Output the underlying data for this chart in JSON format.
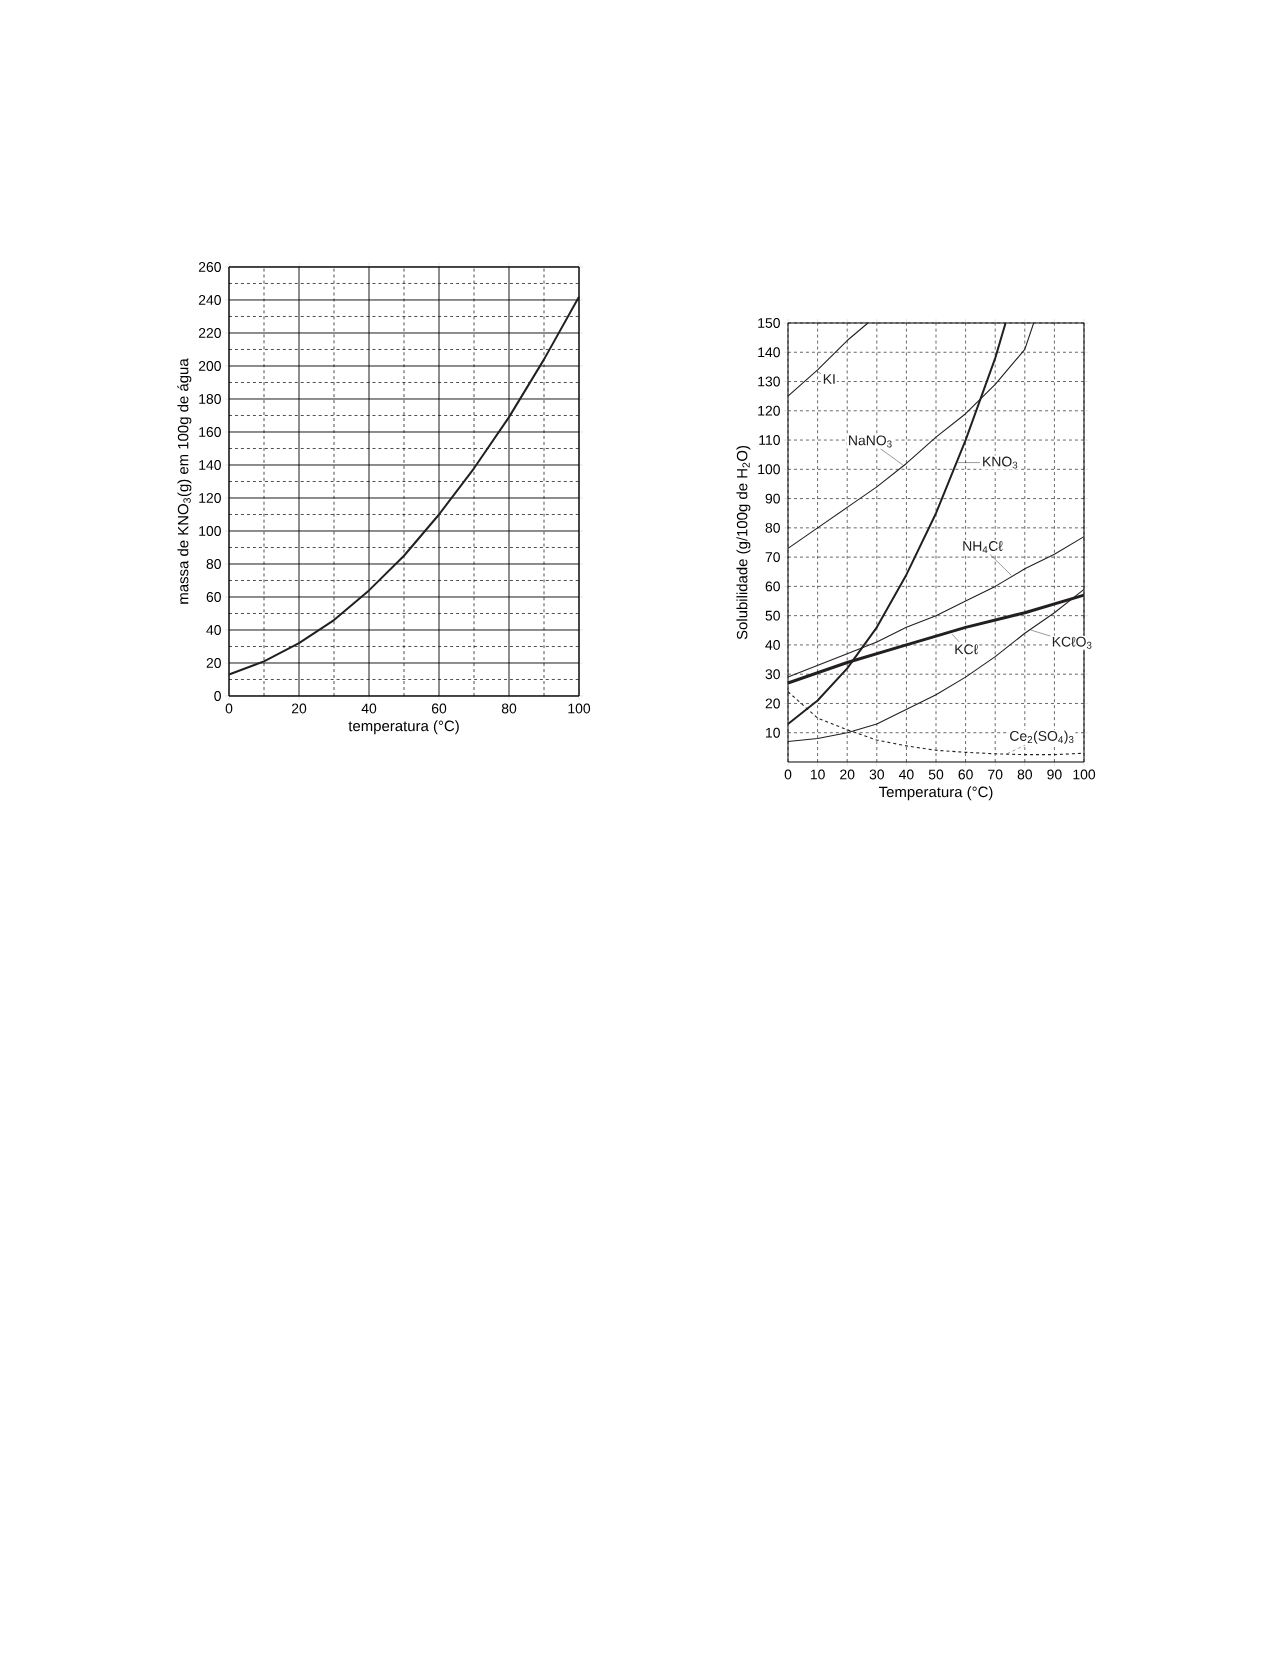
{
  "chart_data": [
    {
      "type": "line",
      "xlabel": "temperatura (°C)",
      "ylabel": "massa de KNO$_{3}$(g) em 100g de água",
      "x": [
        0,
        10,
        20,
        30,
        40,
        50,
        60,
        70,
        80,
        90,
        100
      ],
      "series": [
        {
          "color": "#231f20",
          "values": [
            13,
            21,
            32,
            46,
            64,
            85,
            110,
            138,
            169,
            204,
            242
          ]
        }
      ],
      "xlim": [
        0,
        100
      ],
      "ylim": [
        0,
        260
      ],
      "xticks": [
        0,
        20,
        40,
        60,
        80,
        100
      ],
      "yticks": [
        0,
        20,
        40,
        60,
        80,
        100,
        120,
        140,
        160,
        180,
        200,
        220,
        240,
        260
      ],
      "grid": true
    },
    {
      "type": "line",
      "xlabel": "Temperatura (°C)",
      "ylabel": "Solubilidade (g/100g de H$_{2}$O)",
      "series": [
        {
          "name": "KI",
          "color": "#231f20",
          "x": [
            0,
            10,
            20,
            27
          ],
          "values": [
            125,
            134,
            144,
            150
          ]
        },
        {
          "name": "NaNO$_{3}$",
          "color": "#231f20",
          "x": [
            0,
            10,
            20,
            30,
            40,
            50,
            60,
            70,
            80,
            83
          ],
          "values": [
            73,
            80,
            87,
            94,
            102,
            111,
            119,
            129,
            141,
            150
          ]
        },
        {
          "name": "KNO$_{3}$",
          "color": "#231f20",
          "x": [
            0,
            10,
            20,
            30,
            40,
            50,
            60,
            70,
            73.5
          ],
          "values": [
            13,
            21,
            32,
            46,
            64,
            85,
            110,
            138,
            150
          ]
        },
        {
          "name": "NH$_{4}$Cℓ",
          "color": "#231f20",
          "x": [
            0,
            10,
            20,
            30,
            40,
            50,
            60,
            70,
            80,
            90,
            100
          ],
          "values": [
            29,
            33,
            37,
            41,
            46,
            50,
            55,
            60,
            66,
            71,
            77
          ]
        },
        {
          "name": "KCℓ",
          "color": "#231f20",
          "x": [
            0,
            20,
            40,
            60,
            80,
            100
          ],
          "values": [
            27,
            34,
            40,
            46,
            51,
            57
          ]
        },
        {
          "name": "KCℓO$_{3}$",
          "color": "#231f20",
          "x": [
            0,
            10,
            20,
            30,
            40,
            50,
            60,
            70,
            80,
            90,
            100
          ],
          "values": [
            7,
            8,
            10,
            13,
            18,
            23,
            29,
            36,
            44,
            51,
            59
          ]
        },
        {
          "name": "Ce$_{2}$(SO$_{4}$)$_{3}$",
          "color": "#231f20",
          "line_style": "dashed",
          "x": [
            0,
            10,
            20,
            30,
            40,
            50,
            60,
            70,
            80,
            90,
            100
          ],
          "values": [
            24,
            15,
            11,
            7.5,
            5.5,
            4,
            3.3,
            2.8,
            2.5,
            2.5,
            3
          ]
        }
      ],
      "xlim": [
        0,
        100
      ],
      "ylim": [
        0,
        150
      ],
      "xticks": [
        0,
        10,
        20,
        30,
        40,
        50,
        60,
        70,
        80,
        90,
        100
      ],
      "yticks": [
        10,
        20,
        30,
        40,
        50,
        60,
        70,
        80,
        90,
        100,
        110,
        120,
        130,
        140,
        150
      ],
      "grid": true
    }
  ]
}
